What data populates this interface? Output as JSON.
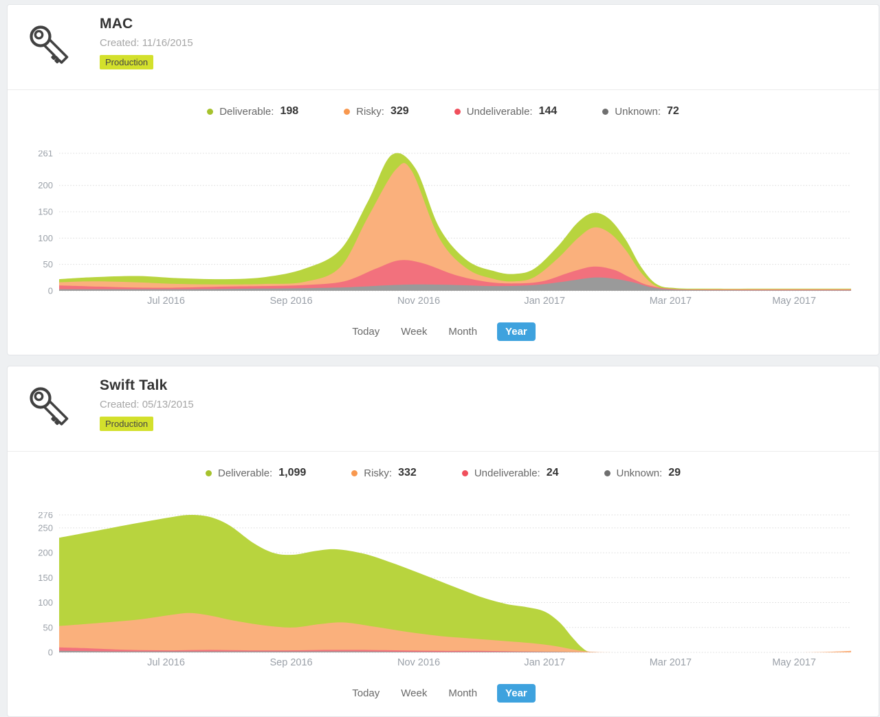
{
  "colors": {
    "page_bg": "#eef0f2",
    "card_bg": "#ffffff",
    "badge_bg": "#d3e02c",
    "active_button_bg": "#3ea2de",
    "deliverable": "#b8d43e",
    "risky": "#fab07c",
    "undeliverable": "#f2717d",
    "unknown": "#9a9a9a"
  },
  "cards": [
    {
      "title": "MAC",
      "created": "Created: 11/16/2015",
      "badge": "Production",
      "legend": [
        {
          "label": "Deliverable:",
          "value": "198",
          "color": "#a6c22d",
          "dot_style": "background:#a6c22d"
        },
        {
          "label": "Risky:",
          "value": "329",
          "color": "#f8984f",
          "dot_style": "background:#f8984f"
        },
        {
          "label": "Undeliverable:",
          "value": "144",
          "color": "#f04f5c",
          "dot_style": "background:#f04f5c"
        },
        {
          "label": "Unknown:",
          "value": "72",
          "color": "#6f6f6f",
          "dot_style": "background:#6f6f6f"
        }
      ],
      "periods": {
        "today": "Today",
        "week": "Week",
        "month": "Month",
        "year": "Year",
        "active": "Year"
      }
    },
    {
      "title": "Swift Talk",
      "created": "Created: 05/13/2015",
      "badge": "Production",
      "legend": [
        {
          "label": "Deliverable:",
          "value": "1,099",
          "color": "#a6c22d",
          "dot_style": "background:#a6c22d"
        },
        {
          "label": "Risky:",
          "value": "332",
          "color": "#f8984f",
          "dot_style": "background:#f8984f"
        },
        {
          "label": "Undeliverable:",
          "value": "24",
          "color": "#f04f5c",
          "dot_style": "background:#f04f5c"
        },
        {
          "label": "Unknown:",
          "value": "29",
          "color": "#6f6f6f",
          "dot_style": "background:#6f6f6f"
        }
      ],
      "periods": {
        "today": "Today",
        "week": "Week",
        "month": "Month",
        "year": "Year",
        "active": "Year"
      }
    }
  ],
  "chart_data": [
    {
      "type": "area",
      "title": "",
      "grid": "dotted-horizontal",
      "legend_position": "top",
      "y_max": 261,
      "y_ticks": [
        261,
        200,
        150,
        100,
        50,
        0
      ],
      "x_ticks": [
        {
          "pos": 0.135,
          "label": "Jul 2016"
        },
        {
          "pos": 0.293,
          "label": "Sep 2016"
        },
        {
          "pos": 0.454,
          "label": "Nov 2016"
        },
        {
          "pos": 0.613,
          "label": "Jan 2017"
        },
        {
          "pos": 0.772,
          "label": "Mar 2017"
        },
        {
          "pos": 0.928,
          "label": "May 2017"
        }
      ],
      "series": [
        {
          "name": "Deliverable",
          "total": 198,
          "color": "#b8d43e",
          "points": [
            [
              0,
              22
            ],
            [
              0.045,
              26
            ],
            [
              0.1,
              28
            ],
            [
              0.15,
              24
            ],
            [
              0.21,
              22
            ],
            [
              0.26,
              26
            ],
            [
              0.31,
              42
            ],
            [
              0.355,
              78
            ],
            [
              0.39,
              170
            ],
            [
              0.42,
              258
            ],
            [
              0.45,
              232
            ],
            [
              0.48,
              120
            ],
            [
              0.515,
              58
            ],
            [
              0.55,
              37
            ],
            [
              0.575,
              32
            ],
            [
              0.6,
              42
            ],
            [
              0.63,
              85
            ],
            [
              0.655,
              130
            ],
            [
              0.675,
              148
            ],
            [
              0.695,
              136
            ],
            [
              0.715,
              98
            ],
            [
              0.735,
              45
            ],
            [
              0.755,
              12
            ],
            [
              0.78,
              5
            ],
            [
              0.83,
              4
            ],
            [
              0.89,
              4
            ],
            [
              0.95,
              4
            ],
            [
              1,
              4
            ]
          ]
        },
        {
          "name": "Risky",
          "total": 329,
          "color": "#fab07c",
          "points": [
            [
              0,
              16
            ],
            [
              0.045,
              18
            ],
            [
              0.1,
              16
            ],
            [
              0.15,
              13
            ],
            [
              0.21,
              12
            ],
            [
              0.26,
              13
            ],
            [
              0.31,
              17
            ],
            [
              0.355,
              45
            ],
            [
              0.39,
              140
            ],
            [
              0.425,
              230
            ],
            [
              0.445,
              228
            ],
            [
              0.48,
              100
            ],
            [
              0.515,
              42
            ],
            [
              0.55,
              22
            ],
            [
              0.575,
              18
            ],
            [
              0.6,
              26
            ],
            [
              0.63,
              62
            ],
            [
              0.655,
              100
            ],
            [
              0.675,
              120
            ],
            [
              0.695,
              110
            ],
            [
              0.715,
              78
            ],
            [
              0.735,
              34
            ],
            [
              0.755,
              8
            ],
            [
              0.78,
              3
            ],
            [
              0.85,
              3
            ],
            [
              0.92,
              3
            ],
            [
              1,
              3
            ]
          ]
        },
        {
          "name": "Undeliverable",
          "total": 144,
          "color": "#f2717d",
          "points": [
            [
              0,
              10
            ],
            [
              0.05,
              8
            ],
            [
              0.1,
              6
            ],
            [
              0.15,
              6
            ],
            [
              0.21,
              8
            ],
            [
              0.26,
              9
            ],
            [
              0.31,
              11
            ],
            [
              0.36,
              18
            ],
            [
              0.4,
              42
            ],
            [
              0.43,
              58
            ],
            [
              0.46,
              52
            ],
            [
              0.5,
              30
            ],
            [
              0.54,
              17
            ],
            [
              0.575,
              14
            ],
            [
              0.61,
              18
            ],
            [
              0.645,
              35
            ],
            [
              0.675,
              46
            ],
            [
              0.7,
              40
            ],
            [
              0.72,
              26
            ],
            [
              0.745,
              10
            ],
            [
              0.78,
              3
            ],
            [
              0.85,
              2
            ],
            [
              0.93,
              2
            ],
            [
              1,
              2
            ]
          ]
        },
        {
          "name": "Unknown",
          "total": 72,
          "color": "#9a9a9a",
          "points": [
            [
              0,
              3
            ],
            [
              0.08,
              3
            ],
            [
              0.16,
              3
            ],
            [
              0.24,
              4
            ],
            [
              0.31,
              5
            ],
            [
              0.37,
              7
            ],
            [
              0.41,
              10
            ],
            [
              0.45,
              12
            ],
            [
              0.5,
              11
            ],
            [
              0.55,
              9
            ],
            [
              0.6,
              11
            ],
            [
              0.64,
              18
            ],
            [
              0.675,
              25
            ],
            [
              0.7,
              23
            ],
            [
              0.725,
              16
            ],
            [
              0.75,
              6
            ],
            [
              0.78,
              2
            ],
            [
              0.86,
              1
            ],
            [
              1,
              1
            ]
          ]
        }
      ]
    },
    {
      "type": "area",
      "title": "",
      "grid": "dotted-horizontal",
      "legend_position": "top",
      "y_max": 276,
      "y_ticks": [
        276,
        250,
        200,
        150,
        100,
        50,
        0
      ],
      "x_ticks": [
        {
          "pos": 0.135,
          "label": "Jul 2016"
        },
        {
          "pos": 0.293,
          "label": "Sep 2016"
        },
        {
          "pos": 0.454,
          "label": "Nov 2016"
        },
        {
          "pos": 0.613,
          "label": "Jan 2017"
        },
        {
          "pos": 0.772,
          "label": "Mar 2017"
        },
        {
          "pos": 0.928,
          "label": "May 2017"
        }
      ],
      "series": [
        {
          "name": "Deliverable",
          "total": 1099,
          "color": "#b8d43e",
          "points": [
            [
              0,
              230
            ],
            [
              0.05,
              245
            ],
            [
              0.1,
              260
            ],
            [
              0.14,
              271
            ],
            [
              0.165,
              276
            ],
            [
              0.19,
              272
            ],
            [
              0.215,
              255
            ],
            [
              0.245,
              220
            ],
            [
              0.27,
              200
            ],
            [
              0.295,
              196
            ],
            [
              0.325,
              204
            ],
            [
              0.35,
              207
            ],
            [
              0.385,
              198
            ],
            [
              0.42,
              180
            ],
            [
              0.46,
              156
            ],
            [
              0.5,
              131
            ],
            [
              0.535,
              110
            ],
            [
              0.565,
              97
            ],
            [
              0.59,
              91
            ],
            [
              0.613,
              82
            ],
            [
              0.632,
              60
            ],
            [
              0.648,
              30
            ],
            [
              0.66,
              10
            ],
            [
              0.67,
              1
            ],
            [
              0.69,
              0
            ],
            [
              0.75,
              0
            ],
            [
              0.85,
              0
            ],
            [
              1,
              0
            ]
          ]
        },
        {
          "name": "Risky",
          "total": 332,
          "color": "#fab07c",
          "points": [
            [
              0,
              53
            ],
            [
              0.05,
              59
            ],
            [
              0.1,
              66
            ],
            [
              0.14,
              75
            ],
            [
              0.165,
              79
            ],
            [
              0.19,
              74
            ],
            [
              0.22,
              64
            ],
            [
              0.26,
              54
            ],
            [
              0.295,
              50
            ],
            [
              0.33,
              57
            ],
            [
              0.36,
              60
            ],
            [
              0.4,
              51
            ],
            [
              0.44,
              41
            ],
            [
              0.48,
              33
            ],
            [
              0.52,
              28
            ],
            [
              0.56,
              23
            ],
            [
              0.6,
              18
            ],
            [
              0.625,
              13
            ],
            [
              0.645,
              7
            ],
            [
              0.66,
              3
            ],
            [
              0.675,
              1
            ],
            [
              0.7,
              0
            ],
            [
              0.8,
              0
            ],
            [
              0.9,
              0
            ],
            [
              0.94,
              0
            ],
            [
              0.97,
              1
            ],
            [
              1,
              3
            ]
          ]
        },
        {
          "name": "Undeliverable",
          "total": 24,
          "color": "#f2717d",
          "points": [
            [
              0,
              10
            ],
            [
              0.04,
              8
            ],
            [
              0.09,
              5
            ],
            [
              0.14,
              4
            ],
            [
              0.19,
              5
            ],
            [
              0.24,
              4
            ],
            [
              0.29,
              4
            ],
            [
              0.34,
              5
            ],
            [
              0.38,
              5
            ],
            [
              0.43,
              4
            ],
            [
              0.48,
              3
            ],
            [
              0.53,
              3
            ],
            [
              0.58,
              2
            ],
            [
              0.63,
              1
            ],
            [
              0.67,
              0
            ],
            [
              0.75,
              0
            ],
            [
              1,
              0
            ]
          ]
        },
        {
          "name": "Unknown",
          "total": 29,
          "color": "#9a9a9a",
          "points": [
            [
              0,
              3
            ],
            [
              0.07,
              2
            ],
            [
              0.14,
              2
            ],
            [
              0.22,
              2
            ],
            [
              0.3,
              2
            ],
            [
              0.38,
              2
            ],
            [
              0.46,
              1
            ],
            [
              0.54,
              1
            ],
            [
              0.62,
              1
            ],
            [
              0.68,
              0
            ],
            [
              0.8,
              0
            ],
            [
              1,
              0
            ]
          ]
        }
      ]
    }
  ]
}
